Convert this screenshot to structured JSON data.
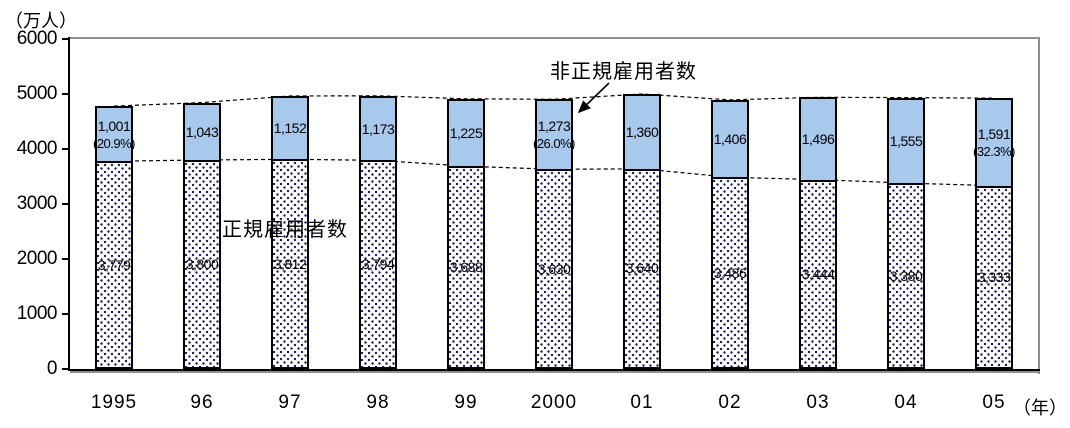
{
  "chart_data": {
    "type": "bar",
    "stacked": true,
    "unit_label": "（万人）",
    "x_unit_label": "（年）",
    "categories": [
      "1995",
      "96",
      "97",
      "98",
      "99",
      "2000",
      "01",
      "02",
      "03",
      "04",
      "05"
    ],
    "series": [
      {
        "name": "正規雇用者数",
        "values": [
          3779,
          3800,
          3812,
          3794,
          3688,
          3630,
          3640,
          3486,
          3444,
          3380,
          3333
        ],
        "labels": [
          "3,779",
          "3,800",
          "3,812",
          "3,794",
          "3,688",
          "3,630",
          "3,640",
          "3,486",
          "3,444",
          "3,380",
          "3,333"
        ]
      },
      {
        "name": "非正規雇用者数",
        "values": [
          1001,
          1043,
          1152,
          1173,
          1225,
          1273,
          1360,
          1406,
          1496,
          1555,
          1591
        ],
        "labels": [
          "1,001",
          "1,043",
          "1,152",
          "1,173",
          "1,225",
          "1,273",
          "1,360",
          "1,406",
          "1,496",
          "1,555",
          "1,591"
        ],
        "pct_labels": [
          "(20.9%)",
          null,
          null,
          null,
          null,
          "(26.0%)",
          null,
          null,
          null,
          null,
          "(32.3%)"
        ]
      }
    ],
    "ylim": [
      0,
      6000
    ],
    "yticks": [
      0,
      1000,
      2000,
      3000,
      4000,
      5000,
      6000
    ],
    "legend": "none",
    "grid": "off",
    "dashed_guides": [
      "total-employment-line",
      "regular-employment-line"
    ],
    "colors": {
      "nonregular_fill": "#a9c9ec",
      "bar_border": "#000000",
      "dot_pattern": "#1b1b55",
      "plot_border_gray": "#8f8f8f",
      "text": "#000000"
    }
  }
}
